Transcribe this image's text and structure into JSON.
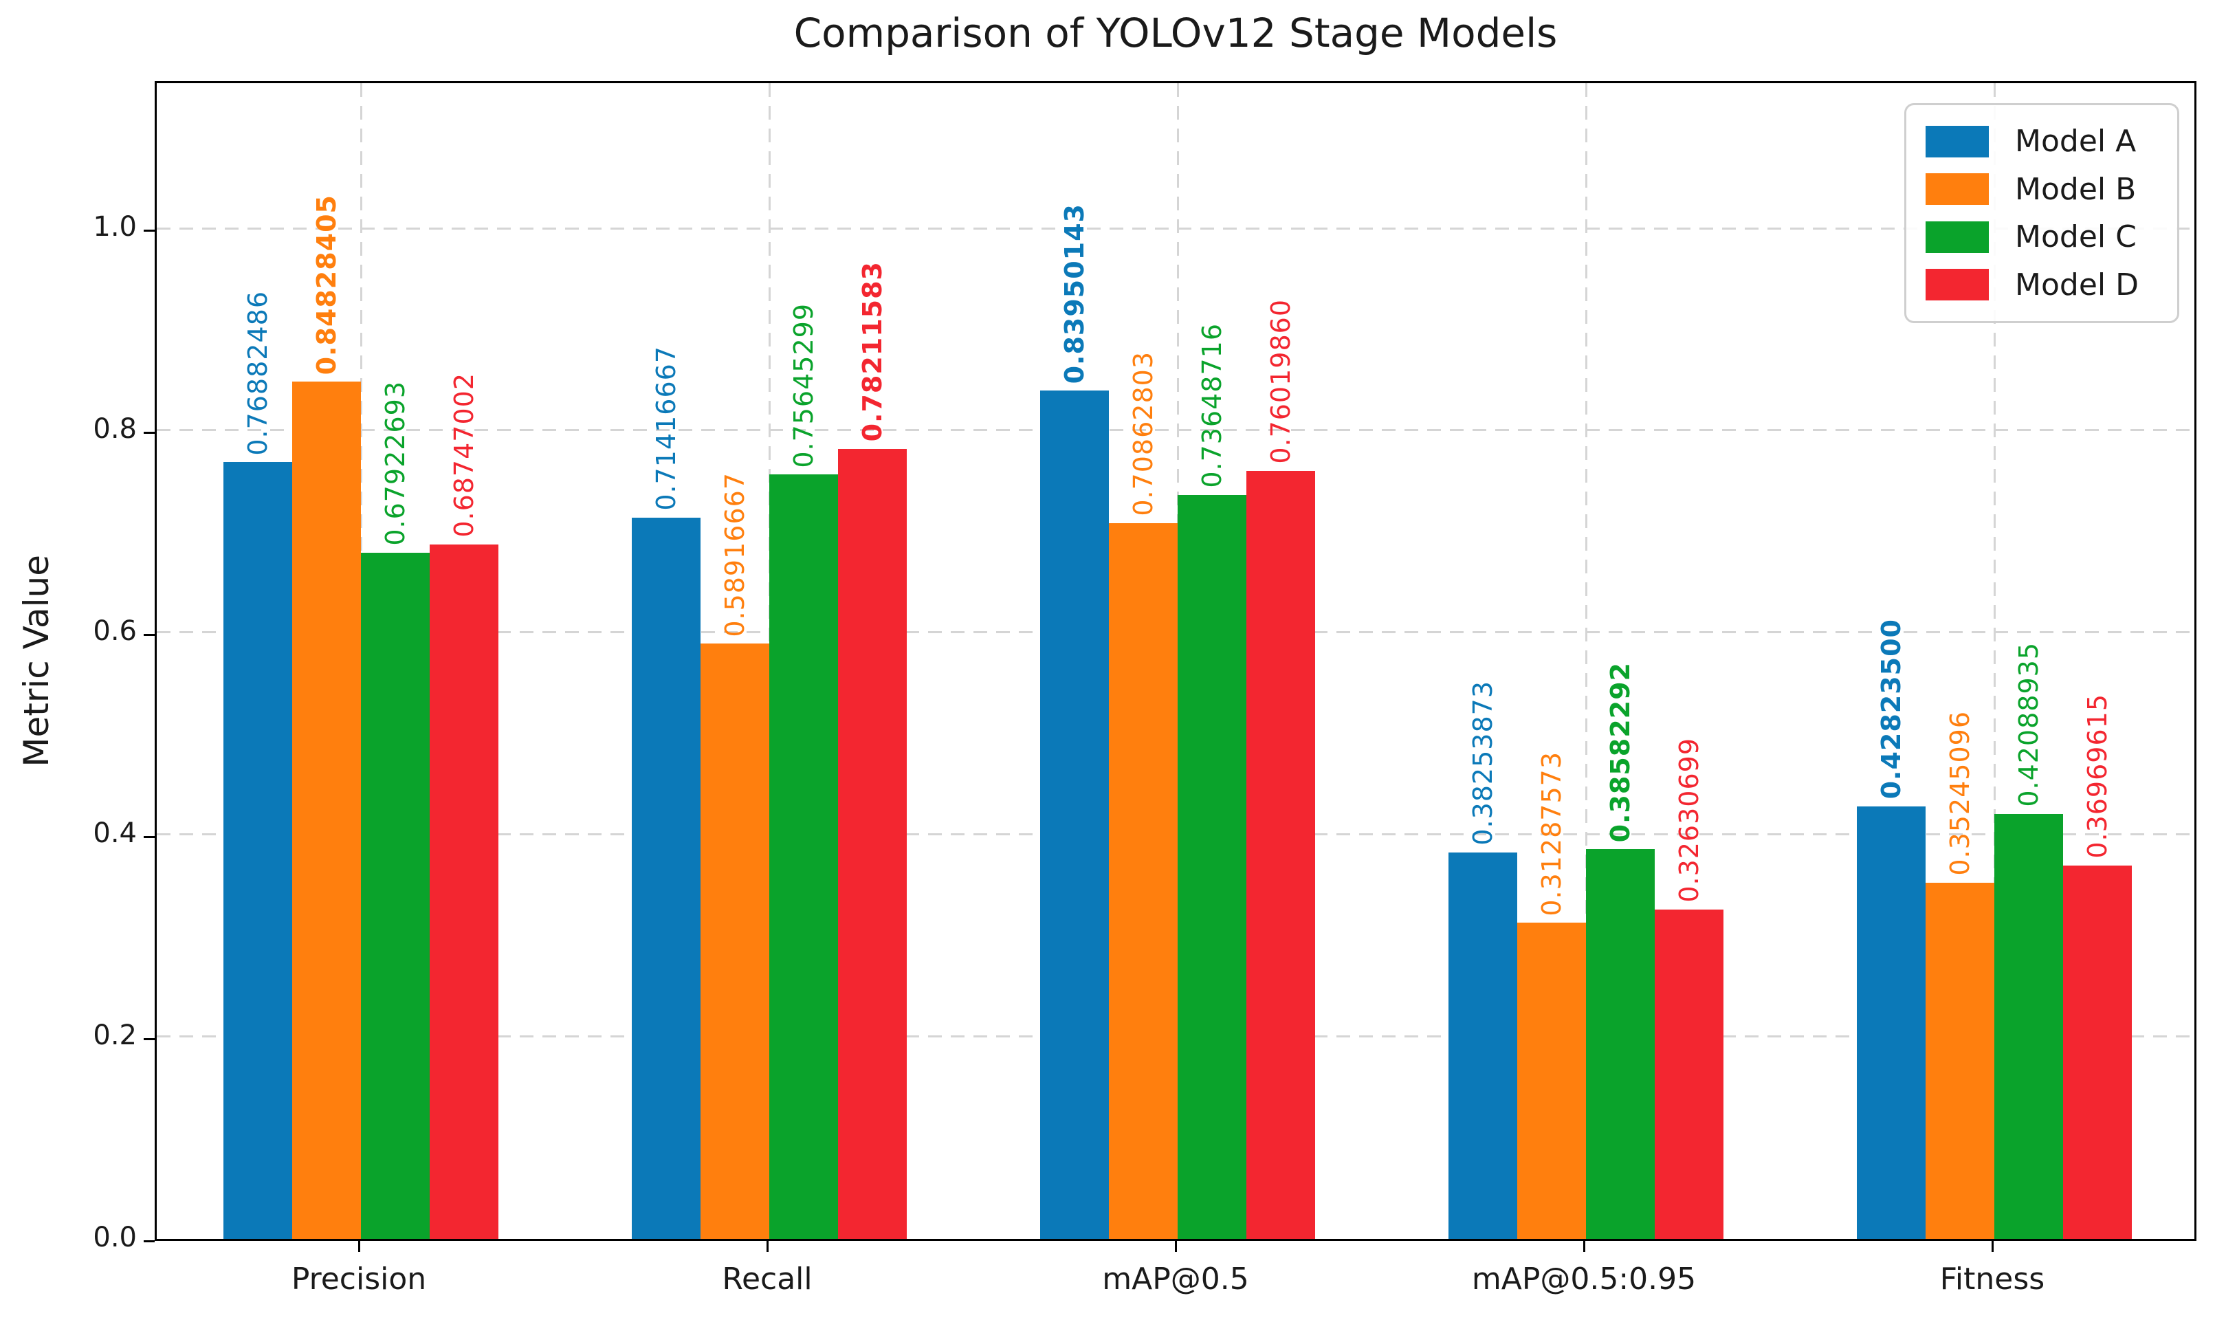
{
  "title": "Comparison of YOLOv12 Stage Models",
  "chart_data": {
    "type": "bar",
    "title": "Comparison of YOLOv12 Stage Models",
    "xlabel": "",
    "ylabel": "Metric Value",
    "categories": [
      "Precision",
      "Recall",
      "mAP@0.5",
      "mAP@0.5:0.95",
      "Fitness"
    ],
    "series": [
      {
        "name": "Model A",
        "color": "#0b79b8",
        "values": [
          0.76882486,
          0.71416667,
          0.83950143,
          0.38253873,
          0.428235
        ]
      },
      {
        "name": "Model B",
        "color": "#ff7f0e",
        "values": [
          0.84828405,
          0.58916667,
          0.70862803,
          0.31287573,
          0.35245096
        ]
      },
      {
        "name": "Model C",
        "color": "#0aa32b",
        "values": [
          0.67922693,
          0.75645299,
          0.73648716,
          0.38582292,
          0.42088935
        ]
      },
      {
        "name": "Model D",
        "color": "#f32630",
        "values": [
          0.68747002,
          0.78211583,
          0.7601986,
          0.32630699,
          0.36969615
        ]
      }
    ],
    "value_labels": {
      "Precision": [
        "0.76882486",
        "0.84828405",
        "0.67922693",
        "0.68747002"
      ],
      "Recall": [
        "0.71416667",
        "0.58916667",
        "0.75645299",
        "0.78211583"
      ],
      "mAP@0.5": [
        "0.83950143",
        "0.70862803",
        "0.73648716",
        "0.76019860"
      ],
      "mAP@0.5:0.95": [
        "0.38253873",
        "0.31287573",
        "0.38582292",
        "0.32630699"
      ],
      "Fitness": [
        "0.42823500",
        "0.35245096",
        "0.42088935",
        "0.36969615"
      ]
    },
    "value_label_rotation_deg": 90,
    "bold_best_per_category": true,
    "yticks": [
      "0.0",
      "0.2",
      "0.4",
      "0.6",
      "0.8",
      "1.0"
    ],
    "ylim": [
      0,
      1.148
    ],
    "grid": true,
    "legend_position": "upper right"
  },
  "legend": {
    "entries": [
      "Model A",
      "Model B",
      "Model C",
      "Model D"
    ]
  }
}
